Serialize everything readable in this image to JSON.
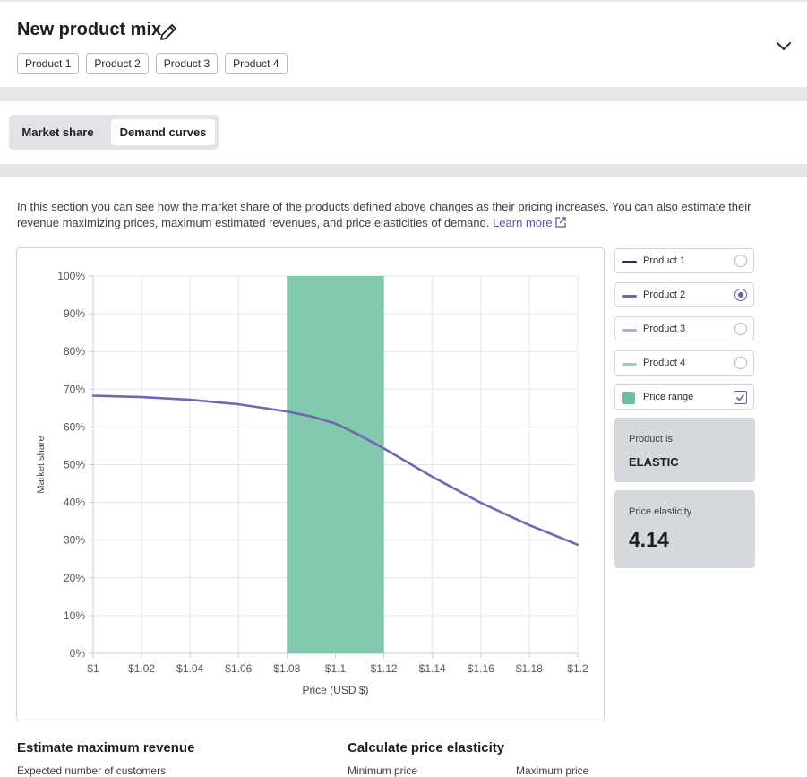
{
  "header": {
    "title": "New product mix",
    "tags": [
      "Product 1",
      "Product 2",
      "Product 3",
      "Product 4"
    ]
  },
  "tabs": {
    "market_share": "Market share",
    "demand_curves": "Demand curves",
    "active": "Demand curves"
  },
  "description": {
    "text": "In this section you can see how the market share of the products defined above changes as their pricing increases. You can also estimate their revenue maximizing prices, maximum estimated revenues, and price elasticities of demand.",
    "learn_more": "Learn more"
  },
  "legend": {
    "items": [
      {
        "label": "Product 1",
        "color": "#2b2463",
        "selected": false
      },
      {
        "label": "Product 2",
        "color": "#6f66b8",
        "selected": true
      },
      {
        "label": "Product 3",
        "color": "#b3aed8",
        "selected": false
      },
      {
        "label": "Product 4",
        "color": "#8fd6bf",
        "selected": false
      }
    ],
    "price_range": {
      "label": "Price range",
      "color": "#6cbf9f",
      "checked": true
    }
  },
  "elastic_card": {
    "label": "Product is",
    "value": "ELASTIC"
  },
  "elasticity_card": {
    "label": "Price elasticity",
    "value": "4.14"
  },
  "sections": {
    "revenue": {
      "title": "Estimate maximum revenue",
      "field": "Expected number of customers"
    },
    "elasticity": {
      "title": "Calculate price elasticity",
      "min": "Minimum price",
      "max": "Maximum price"
    }
  },
  "chart_data": {
    "type": "line",
    "xlabel": "Price (USD $)",
    "ylabel": "Market share",
    "x_ticks": [
      "$1",
      "$1.02",
      "$1.04",
      "$1.06",
      "$1.08",
      "$1.1",
      "$1.12",
      "$1.14",
      "$1.16",
      "$1.18",
      "$1.2"
    ],
    "y_ticks": [
      "0%",
      "10%",
      "20%",
      "30%",
      "40%",
      "50%",
      "60%",
      "70%",
      "80%",
      "90%",
      "100%"
    ],
    "xlim": [
      1.0,
      1.2
    ],
    "ylim": [
      0,
      100
    ],
    "price_range": [
      1.08,
      1.12
    ],
    "series": [
      {
        "name": "Product 2",
        "color": "#6f66b8",
        "x": [
          1.0,
          1.02,
          1.04,
          1.06,
          1.08,
          1.09,
          1.1,
          1.11,
          1.12,
          1.14,
          1.16,
          1.18,
          1.2
        ],
        "y": [
          68.3,
          67.9,
          67.2,
          66.0,
          64.1,
          62.8,
          60.9,
          57.8,
          54.3,
          46.8,
          39.9,
          34.0,
          28.8
        ]
      }
    ]
  }
}
